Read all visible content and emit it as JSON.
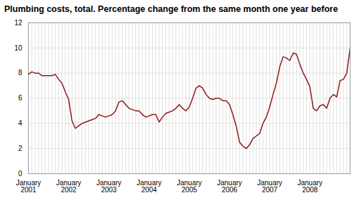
{
  "chart_data": {
    "type": "line",
    "title": "Plumbing costs, total. Percentage change from the same month one year before",
    "categories": [
      "January\n2001",
      null,
      null,
      null,
      null,
      null,
      null,
      null,
      null,
      null,
      null,
      null,
      "January\n2002",
      null,
      null,
      null,
      null,
      null,
      null,
      null,
      null,
      null,
      null,
      null,
      "January\n2003",
      null,
      null,
      null,
      null,
      null,
      null,
      null,
      null,
      null,
      null,
      null,
      "January\n2004",
      null,
      null,
      null,
      null,
      null,
      null,
      null,
      null,
      null,
      null,
      null,
      "January\n2005",
      null,
      null,
      null,
      null,
      null,
      null,
      null,
      null,
      null,
      null,
      null,
      "January\n2006",
      null,
      null,
      null,
      null,
      null,
      null,
      null,
      null,
      null,
      null,
      null,
      "January\n2007",
      null,
      null,
      null,
      null,
      null,
      null,
      null,
      null,
      null,
      null,
      null,
      "January\n2008",
      null,
      null,
      null,
      null,
      null,
      null,
      null,
      null,
      null,
      null,
      null,
      null
    ],
    "values": [
      7.9,
      8.1,
      8.0,
      8.0,
      7.8,
      7.8,
      7.8,
      7.8,
      7.9,
      7.5,
      7.2,
      6.5,
      5.9,
      4.2,
      3.6,
      3.8,
      4.0,
      4.1,
      4.2,
      4.3,
      4.4,
      4.7,
      4.6,
      4.5,
      4.6,
      4.7,
      5.0,
      5.7,
      5.8,
      5.5,
      5.2,
      5.1,
      5.0,
      5.0,
      4.7,
      4.5,
      4.6,
      4.7,
      4.7,
      4.1,
      4.5,
      4.8,
      4.9,
      5.0,
      5.2,
      5.5,
      5.2,
      5.0,
      5.3,
      6.0,
      6.8,
      7.0,
      6.8,
      6.3,
      6.0,
      5.9,
      6.0,
      6.0,
      5.8,
      5.8,
      5.5,
      4.7,
      3.8,
      2.5,
      2.2,
      2.0,
      2.3,
      2.8,
      3.0,
      3.2,
      4.0,
      4.5,
      5.3,
      6.3,
      7.2,
      8.5,
      9.3,
      9.2,
      9.0,
      9.6,
      9.5,
      8.7,
      8.0,
      7.5,
      6.9,
      5.2,
      5.0,
      5.4,
      5.5,
      5.2,
      6.0,
      6.3,
      6.1,
      7.4,
      7.5,
      8.0,
      10.0
    ],
    "color": "#8B1A1A",
    "ylim": [
      0,
      12
    ],
    "yticks": [
      0,
      2,
      4,
      6,
      8,
      10,
      12
    ],
    "grid": true
  }
}
